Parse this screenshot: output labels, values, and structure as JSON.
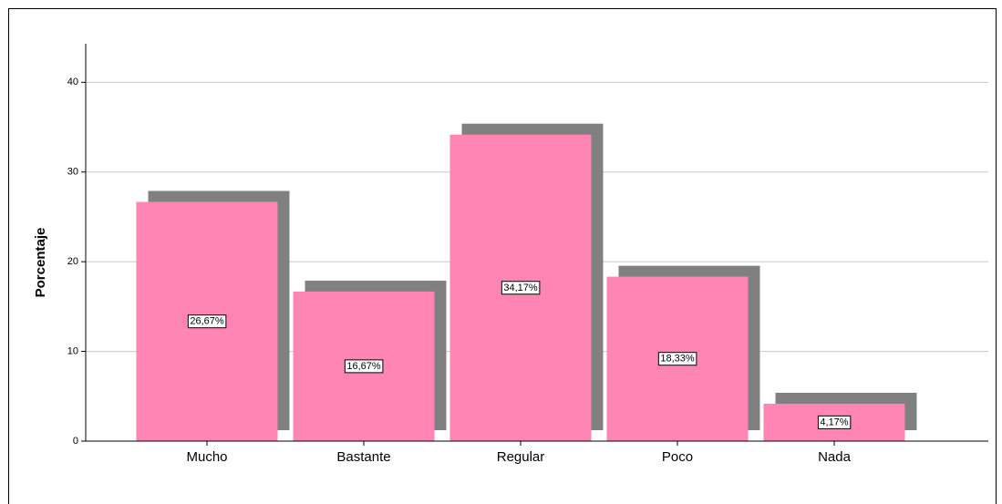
{
  "chart_data": {
    "type": "bar",
    "y_label": "Porcentaje",
    "categories": [
      "Mucho",
      "Bastante",
      "Regular",
      "Poco",
      "Nada"
    ],
    "values": [
      26.67,
      16.67,
      34.17,
      18.33,
      4.17
    ],
    "value_labels": [
      "26,67%",
      "16,67%",
      "34,17%",
      "18,33%",
      "4,17%"
    ],
    "color": "#ff85b5",
    "shadow_color": "#808080",
    "ylim": [
      0,
      44.3
    ],
    "yticks": [
      0,
      10,
      20,
      30,
      40
    ],
    "grid": true
  }
}
